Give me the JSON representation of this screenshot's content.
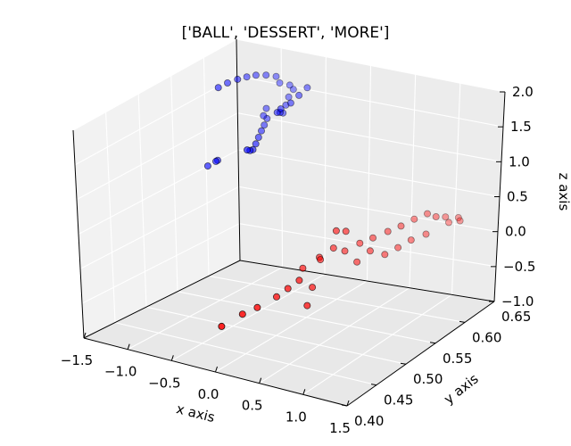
{
  "chart_data": {
    "type": "scatter",
    "projection": "3d",
    "title": "['BALL', 'DESSERT', 'MORE']",
    "xlabel": "x axis",
    "ylabel": "y axis",
    "zlabel": "z axis",
    "xlim": [
      -1.5,
      1.5
    ],
    "ylim": [
      0.4,
      0.65
    ],
    "zlim": [
      -1.0,
      2.0
    ],
    "grid": true,
    "x_ticks": [
      "−1.5",
      "−1.0",
      "−0.5",
      "0.0",
      "0.5",
      "1.0",
      "1.5"
    ],
    "y_ticks": [
      "0.40",
      "0.45",
      "0.50",
      "0.55",
      "0.60",
      "0.65"
    ],
    "z_ticks": [
      "−1.0",
      "−0.5",
      "0.0",
      "0.5",
      "1.0",
      "1.5",
      "2.0"
    ],
    "series": [
      {
        "color": "#0000ff",
        "points": [
          [
            -1.05,
            0.56,
            1.9
          ],
          [
            -1.02,
            0.57,
            1.92
          ],
          [
            -0.98,
            0.58,
            1.93
          ],
          [
            -0.95,
            0.59,
            1.92
          ],
          [
            -0.92,
            0.6,
            1.9
          ],
          [
            -0.88,
            0.61,
            1.86
          ],
          [
            -0.84,
            0.62,
            1.8
          ],
          [
            -0.8,
            0.62,
            1.72
          ],
          [
            -0.76,
            0.63,
            1.65
          ],
          [
            -0.72,
            0.63,
            1.6
          ],
          [
            -0.7,
            0.62,
            1.55
          ],
          [
            -0.66,
            0.61,
            1.5
          ],
          [
            -0.62,
            0.6,
            1.45
          ],
          [
            -0.58,
            0.59,
            1.52
          ],
          [
            -0.54,
            0.58,
            1.58
          ],
          [
            -0.5,
            0.58,
            1.64
          ],
          [
            -0.46,
            0.59,
            1.68
          ],
          [
            -0.44,
            0.6,
            1.74
          ],
          [
            -0.42,
            0.61,
            1.8
          ],
          [
            -0.6,
            0.55,
            1.2
          ],
          [
            -0.64,
            0.56,
            1.22
          ],
          [
            -0.68,
            0.57,
            1.25
          ],
          [
            -0.72,
            0.58,
            1.28
          ],
          [
            -0.76,
            0.59,
            1.3
          ],
          [
            -0.8,
            0.6,
            1.33
          ],
          [
            -0.84,
            0.6,
            1.36
          ],
          [
            -0.88,
            0.61,
            1.4
          ],
          [
            -0.56,
            0.54,
            1.25
          ],
          [
            -0.52,
            0.53,
            1.32
          ],
          [
            -1.0,
            0.55,
            0.95
          ],
          [
            -1.02,
            0.55,
            0.93
          ],
          [
            -1.04,
            0.54,
            0.91
          ]
        ]
      },
      {
        "color": "#ff0000",
        "points": [
          [
            -0.2,
            0.44,
            -0.62
          ],
          [
            -0.1,
            0.46,
            -0.52
          ],
          [
            0.0,
            0.47,
            -0.45
          ],
          [
            0.08,
            0.49,
            -0.38
          ],
          [
            0.14,
            0.5,
            -0.3
          ],
          [
            0.2,
            0.51,
            -0.22
          ],
          [
            0.28,
            0.52,
            -0.35
          ],
          [
            0.36,
            0.5,
            -0.48
          ],
          [
            0.22,
            0.54,
            -0.05
          ],
          [
            0.16,
            0.55,
            -0.15
          ],
          [
            0.24,
            0.56,
            -0.02
          ],
          [
            0.3,
            0.57,
            -0.1
          ],
          [
            0.1,
            0.53,
            -0.18
          ],
          [
            0.4,
            0.58,
            -0.02
          ],
          [
            0.48,
            0.59,
            0.02
          ],
          [
            0.58,
            0.6,
            0.08
          ],
          [
            0.66,
            0.61,
            0.12
          ],
          [
            0.74,
            0.62,
            0.18
          ],
          [
            0.82,
            0.63,
            0.22
          ],
          [
            0.92,
            0.63,
            0.2
          ],
          [
            0.96,
            0.64,
            0.15
          ],
          [
            1.0,
            0.64,
            0.08
          ],
          [
            0.88,
            0.62,
            0.0
          ],
          [
            0.78,
            0.61,
            -0.05
          ],
          [
            0.7,
            0.6,
            -0.12
          ],
          [
            0.62,
            0.59,
            -0.18
          ],
          [
            0.52,
            0.58,
            -0.1
          ],
          [
            0.44,
            0.57,
            -0.22
          ],
          [
            0.38,
            0.56,
            0.25
          ],
          [
            1.04,
            0.65,
            0.1
          ],
          [
            1.06,
            0.65,
            0.06
          ],
          [
            0.34,
            0.55,
            0.3
          ]
        ]
      }
    ]
  }
}
